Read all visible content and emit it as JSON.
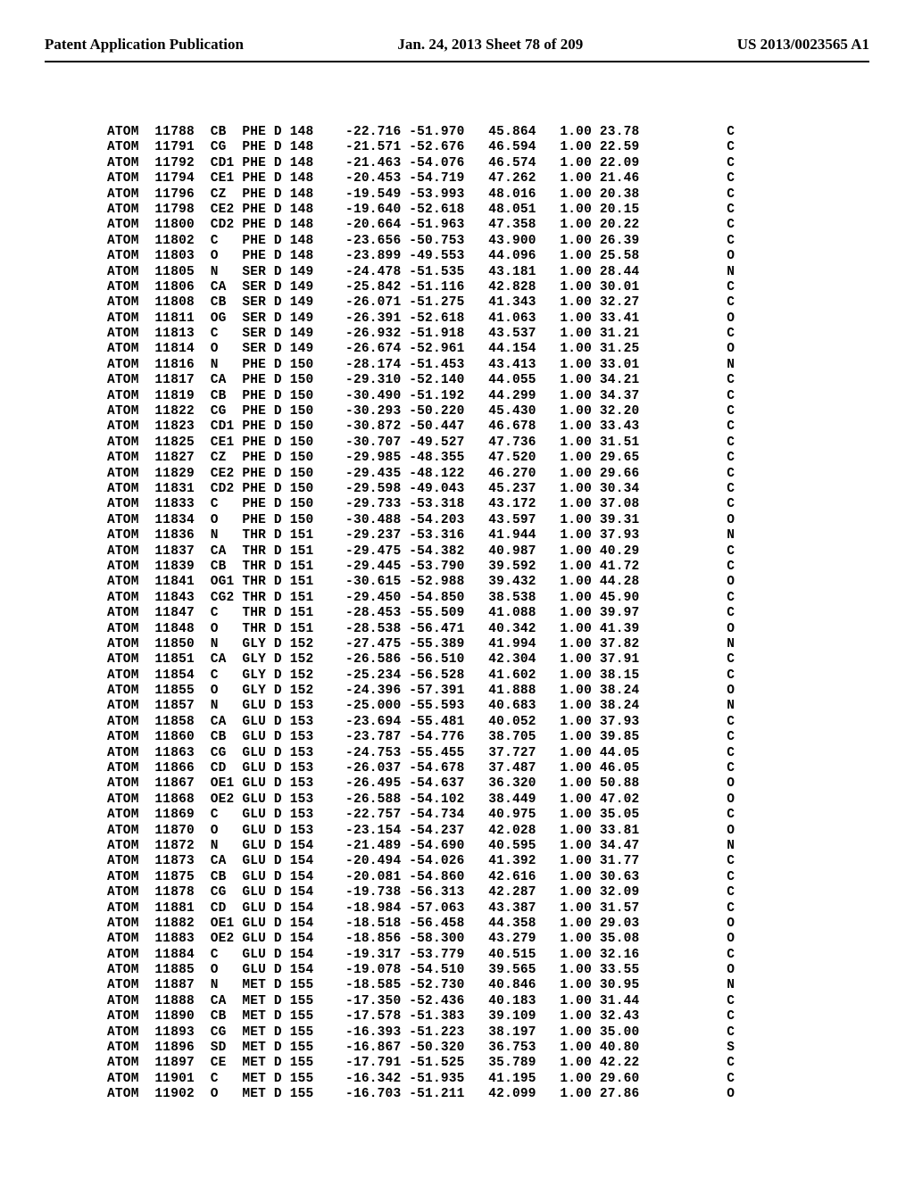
{
  "header": {
    "left": "Patent Application Publication",
    "center": "Jan. 24, 2013  Sheet 78 of 209",
    "right": "US 2013/0023565 A1"
  },
  "pdb": {
    "font_family": "Courier New",
    "font_size_pt": 11,
    "text_color": "#000000",
    "background_color": "#ffffff",
    "columns": [
      "record",
      "serial",
      "atom",
      "res",
      "chain",
      "resSeq",
      "x",
      "y",
      "z",
      "occ",
      "bfac",
      "elem"
    ],
    "rows": [
      [
        "ATOM",
        "11788",
        "CB",
        "PHE",
        "D",
        "148",
        "-22.716",
        "-51.970",
        "45.864",
        "1.00",
        "23.78",
        "C"
      ],
      [
        "ATOM",
        "11791",
        "CG",
        "PHE",
        "D",
        "148",
        "-21.571",
        "-52.676",
        "46.594",
        "1.00",
        "22.59",
        "C"
      ],
      [
        "ATOM",
        "11792",
        "CD1",
        "PHE",
        "D",
        "148",
        "-21.463",
        "-54.076",
        "46.574",
        "1.00",
        "22.09",
        "C"
      ],
      [
        "ATOM",
        "11794",
        "CE1",
        "PHE",
        "D",
        "148",
        "-20.453",
        "-54.719",
        "47.262",
        "1.00",
        "21.46",
        "C"
      ],
      [
        "ATOM",
        "11796",
        "CZ",
        "PHE",
        "D",
        "148",
        "-19.549",
        "-53.993",
        "48.016",
        "1.00",
        "20.38",
        "C"
      ],
      [
        "ATOM",
        "11798",
        "CE2",
        "PHE",
        "D",
        "148",
        "-19.640",
        "-52.618",
        "48.051",
        "1.00",
        "20.15",
        "C"
      ],
      [
        "ATOM",
        "11800",
        "CD2",
        "PHE",
        "D",
        "148",
        "-20.664",
        "-51.963",
        "47.358",
        "1.00",
        "20.22",
        "C"
      ],
      [
        "ATOM",
        "11802",
        "C",
        "PHE",
        "D",
        "148",
        "-23.656",
        "-50.753",
        "43.900",
        "1.00",
        "26.39",
        "C"
      ],
      [
        "ATOM",
        "11803",
        "O",
        "PHE",
        "D",
        "148",
        "-23.899",
        "-49.553",
        "44.096",
        "1.00",
        "25.58",
        "O"
      ],
      [
        "ATOM",
        "11805",
        "N",
        "SER",
        "D",
        "149",
        "-24.478",
        "-51.535",
        "43.181",
        "1.00",
        "28.44",
        "N"
      ],
      [
        "ATOM",
        "11806",
        "CA",
        "SER",
        "D",
        "149",
        "-25.842",
        "-51.116",
        "42.828",
        "1.00",
        "30.01",
        "C"
      ],
      [
        "ATOM",
        "11808",
        "CB",
        "SER",
        "D",
        "149",
        "-26.071",
        "-51.275",
        "41.343",
        "1.00",
        "32.27",
        "C"
      ],
      [
        "ATOM",
        "11811",
        "OG",
        "SER",
        "D",
        "149",
        "-26.391",
        "-52.618",
        "41.063",
        "1.00",
        "33.41",
        "O"
      ],
      [
        "ATOM",
        "11813",
        "C",
        "SER",
        "D",
        "149",
        "-26.932",
        "-51.918",
        "43.537",
        "1.00",
        "31.21",
        "C"
      ],
      [
        "ATOM",
        "11814",
        "O",
        "SER",
        "D",
        "149",
        "-26.674",
        "-52.961",
        "44.154",
        "1.00",
        "31.25",
        "O"
      ],
      [
        "ATOM",
        "11816",
        "N",
        "PHE",
        "D",
        "150",
        "-28.174",
        "-51.453",
        "43.413",
        "1.00",
        "33.01",
        "N"
      ],
      [
        "ATOM",
        "11817",
        "CA",
        "PHE",
        "D",
        "150",
        "-29.310",
        "-52.140",
        "44.055",
        "1.00",
        "34.21",
        "C"
      ],
      [
        "ATOM",
        "11819",
        "CB",
        "PHE",
        "D",
        "150",
        "-30.490",
        "-51.192",
        "44.299",
        "1.00",
        "34.37",
        "C"
      ],
      [
        "ATOM",
        "11822",
        "CG",
        "PHE",
        "D",
        "150",
        "-30.293",
        "-50.220",
        "45.430",
        "1.00",
        "32.20",
        "C"
      ],
      [
        "ATOM",
        "11823",
        "CD1",
        "PHE",
        "D",
        "150",
        "-30.872",
        "-50.447",
        "46.678",
        "1.00",
        "33.43",
        "C"
      ],
      [
        "ATOM",
        "11825",
        "CE1",
        "PHE",
        "D",
        "150",
        "-30.707",
        "-49.527",
        "47.736",
        "1.00",
        "31.51",
        "C"
      ],
      [
        "ATOM",
        "11827",
        "CZ",
        "PHE",
        "D",
        "150",
        "-29.985",
        "-48.355",
        "47.520",
        "1.00",
        "29.65",
        "C"
      ],
      [
        "ATOM",
        "11829",
        "CE2",
        "PHE",
        "D",
        "150",
        "-29.435",
        "-48.122",
        "46.270",
        "1.00",
        "29.66",
        "C"
      ],
      [
        "ATOM",
        "11831",
        "CD2",
        "PHE",
        "D",
        "150",
        "-29.598",
        "-49.043",
        "45.237",
        "1.00",
        "30.34",
        "C"
      ],
      [
        "ATOM",
        "11833",
        "C",
        "PHE",
        "D",
        "150",
        "-29.733",
        "-53.318",
        "43.172",
        "1.00",
        "37.08",
        "C"
      ],
      [
        "ATOM",
        "11834",
        "O",
        "PHE",
        "D",
        "150",
        "-30.488",
        "-54.203",
        "43.597",
        "1.00",
        "39.31",
        "O"
      ],
      [
        "ATOM",
        "11836",
        "N",
        "THR",
        "D",
        "151",
        "-29.237",
        "-53.316",
        "41.944",
        "1.00",
        "37.93",
        "N"
      ],
      [
        "ATOM",
        "11837",
        "CA",
        "THR",
        "D",
        "151",
        "-29.475",
        "-54.382",
        "40.987",
        "1.00",
        "40.29",
        "C"
      ],
      [
        "ATOM",
        "11839",
        "CB",
        "THR",
        "D",
        "151",
        "-29.445",
        "-53.790",
        "39.592",
        "1.00",
        "41.72",
        "C"
      ],
      [
        "ATOM",
        "11841",
        "OG1",
        "THR",
        "D",
        "151",
        "-30.615",
        "-52.988",
        "39.432",
        "1.00",
        "44.28",
        "O"
      ],
      [
        "ATOM",
        "11843",
        "CG2",
        "THR",
        "D",
        "151",
        "-29.450",
        "-54.850",
        "38.538",
        "1.00",
        "45.90",
        "C"
      ],
      [
        "ATOM",
        "11847",
        "C",
        "THR",
        "D",
        "151",
        "-28.453",
        "-55.509",
        "41.088",
        "1.00",
        "39.97",
        "C"
      ],
      [
        "ATOM",
        "11848",
        "O",
        "THR",
        "D",
        "151",
        "-28.538",
        "-56.471",
        "40.342",
        "1.00",
        "41.39",
        "O"
      ],
      [
        "ATOM",
        "11850",
        "N",
        "GLY",
        "D",
        "152",
        "-27.475",
        "-55.389",
        "41.994",
        "1.00",
        "37.82",
        "N"
      ],
      [
        "ATOM",
        "11851",
        "CA",
        "GLY",
        "D",
        "152",
        "-26.586",
        "-56.510",
        "42.304",
        "1.00",
        "37.91",
        "C"
      ],
      [
        "ATOM",
        "11854",
        "C",
        "GLY",
        "D",
        "152",
        "-25.234",
        "-56.528",
        "41.602",
        "1.00",
        "38.15",
        "C"
      ],
      [
        "ATOM",
        "11855",
        "O",
        "GLY",
        "D",
        "152",
        "-24.396",
        "-57.391",
        "41.888",
        "1.00",
        "38.24",
        "O"
      ],
      [
        "ATOM",
        "11857",
        "N",
        "GLU",
        "D",
        "153",
        "-25.000",
        "-55.593",
        "40.683",
        "1.00",
        "38.24",
        "N"
      ],
      [
        "ATOM",
        "11858",
        "CA",
        "GLU",
        "D",
        "153",
        "-23.694",
        "-55.481",
        "40.052",
        "1.00",
        "37.93",
        "C"
      ],
      [
        "ATOM",
        "11860",
        "CB",
        "GLU",
        "D",
        "153",
        "-23.787",
        "-54.776",
        "38.705",
        "1.00",
        "39.85",
        "C"
      ],
      [
        "ATOM",
        "11863",
        "CG",
        "GLU",
        "D",
        "153",
        "-24.753",
        "-55.455",
        "37.727",
        "1.00",
        "44.05",
        "C"
      ],
      [
        "ATOM",
        "11866",
        "CD",
        "GLU",
        "D",
        "153",
        "-26.037",
        "-54.678",
        "37.487",
        "1.00",
        "46.05",
        "C"
      ],
      [
        "ATOM",
        "11867",
        "OE1",
        "GLU",
        "D",
        "153",
        "-26.495",
        "-54.637",
        "36.320",
        "1.00",
        "50.88",
        "O"
      ],
      [
        "ATOM",
        "11868",
        "OE2",
        "GLU",
        "D",
        "153",
        "-26.588",
        "-54.102",
        "38.449",
        "1.00",
        "47.02",
        "O"
      ],
      [
        "ATOM",
        "11869",
        "C",
        "GLU",
        "D",
        "153",
        "-22.757",
        "-54.734",
        "40.975",
        "1.00",
        "35.05",
        "C"
      ],
      [
        "ATOM",
        "11870",
        "O",
        "GLU",
        "D",
        "153",
        "-23.154",
        "-54.237",
        "42.028",
        "1.00",
        "33.81",
        "O"
      ],
      [
        "ATOM",
        "11872",
        "N",
        "GLU",
        "D",
        "154",
        "-21.489",
        "-54.690",
        "40.595",
        "1.00",
        "34.47",
        "N"
      ],
      [
        "ATOM",
        "11873",
        "CA",
        "GLU",
        "D",
        "154",
        "-20.494",
        "-54.026",
        "41.392",
        "1.00",
        "31.77",
        "C"
      ],
      [
        "ATOM",
        "11875",
        "CB",
        "GLU",
        "D",
        "154",
        "-20.081",
        "-54.860",
        "42.616",
        "1.00",
        "30.63",
        "C"
      ],
      [
        "ATOM",
        "11878",
        "CG",
        "GLU",
        "D",
        "154",
        "-19.738",
        "-56.313",
        "42.287",
        "1.00",
        "32.09",
        "C"
      ],
      [
        "ATOM",
        "11881",
        "CD",
        "GLU",
        "D",
        "154",
        "-18.984",
        "-57.063",
        "43.387",
        "1.00",
        "31.57",
        "C"
      ],
      [
        "ATOM",
        "11882",
        "OE1",
        "GLU",
        "D",
        "154",
        "-18.518",
        "-56.458",
        "44.358",
        "1.00",
        "29.03",
        "O"
      ],
      [
        "ATOM",
        "11883",
        "OE2",
        "GLU",
        "D",
        "154",
        "-18.856",
        "-58.300",
        "43.279",
        "1.00",
        "35.08",
        "O"
      ],
      [
        "ATOM",
        "11884",
        "C",
        "GLU",
        "D",
        "154",
        "-19.317",
        "-53.779",
        "40.515",
        "1.00",
        "32.16",
        "C"
      ],
      [
        "ATOM",
        "11885",
        "O",
        "GLU",
        "D",
        "154",
        "-19.078",
        "-54.510",
        "39.565",
        "1.00",
        "33.55",
        "O"
      ],
      [
        "ATOM",
        "11887",
        "N",
        "MET",
        "D",
        "155",
        "-18.585",
        "-52.730",
        "40.846",
        "1.00",
        "30.95",
        "N"
      ],
      [
        "ATOM",
        "11888",
        "CA",
        "MET",
        "D",
        "155",
        "-17.350",
        "-52.436",
        "40.183",
        "1.00",
        "31.44",
        "C"
      ],
      [
        "ATOM",
        "11890",
        "CB",
        "MET",
        "D",
        "155",
        "-17.578",
        "-51.383",
        "39.109",
        "1.00",
        "32.43",
        "C"
      ],
      [
        "ATOM",
        "11893",
        "CG",
        "MET",
        "D",
        "155",
        "-16.393",
        "-51.223",
        "38.197",
        "1.00",
        "35.00",
        "C"
      ],
      [
        "ATOM",
        "11896",
        "SD",
        "MET",
        "D",
        "155",
        "-16.867",
        "-50.320",
        "36.753",
        "1.00",
        "40.80",
        "S"
      ],
      [
        "ATOM",
        "11897",
        "CE",
        "MET",
        "D",
        "155",
        "-17.791",
        "-51.525",
        "35.789",
        "1.00",
        "42.22",
        "C"
      ],
      [
        "ATOM",
        "11901",
        "C",
        "MET",
        "D",
        "155",
        "-16.342",
        "-51.935",
        "41.195",
        "1.00",
        "29.60",
        "C"
      ],
      [
        "ATOM",
        "11902",
        "O",
        "MET",
        "D",
        "155",
        "-16.703",
        "-51.211",
        "42.099",
        "1.00",
        "27.86",
        "O"
      ]
    ]
  }
}
